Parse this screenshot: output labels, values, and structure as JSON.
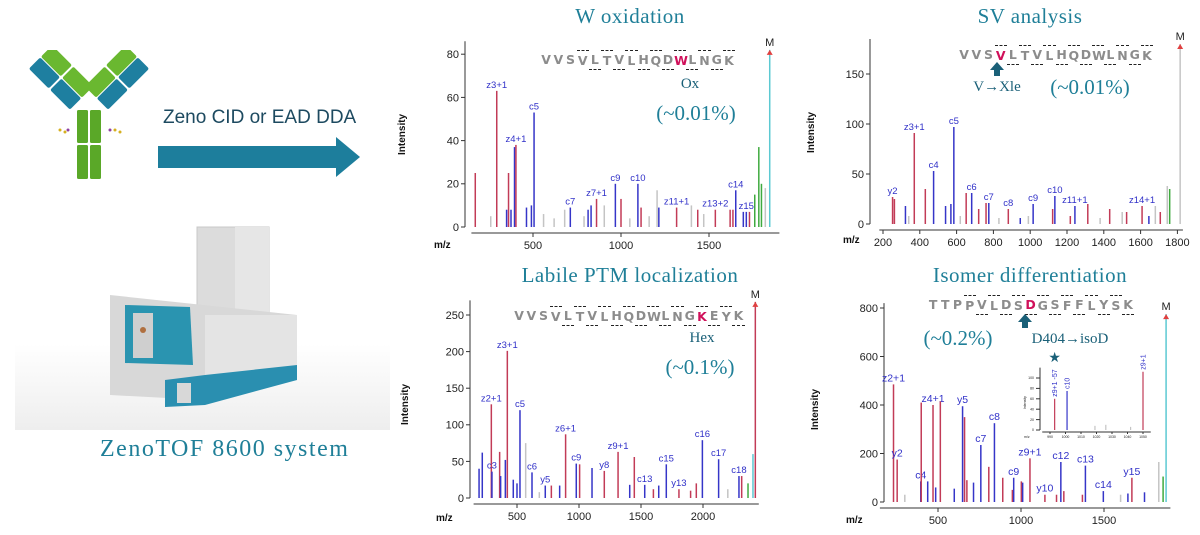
{
  "workflow": {
    "arrow_label": "Zeno CID or EAD DDA",
    "instrument_caption": "ZenoTOF 8600 system",
    "accent_color": "#1a7f9a",
    "icons": [
      "antibody-icon",
      "arrow-right-icon",
      "mass-spectrometer-image"
    ]
  },
  "colors": {
    "red": "#c23b57",
    "blue": "#3535c8",
    "gray": "#c4c4c4",
    "green": "#3faa3f",
    "cyan": "#5cc9d2",
    "label": "#3030c8",
    "mod_residue": "#d0105a"
  },
  "panels": [
    {
      "title": "W oxidation",
      "sequence": "VVSVLTVLHQDWLNGK",
      "mod_index": 11,
      "mod_label": "Ox",
      "abundance": "(~0.01%)",
      "ylabel": "Intensity",
      "xlabel": "m/z"
    },
    {
      "title": "SV analysis",
      "sequence": "VVSVLTVLHQDWLNGK",
      "mod_index": 3,
      "mod_label": "V→Xle",
      "abundance": "(~0.01%)",
      "ylabel": "Intensity",
      "xlabel": "m/z"
    },
    {
      "title": "Labile PTM localization",
      "sequence": "VVSVLTVLHQDWLNGKEYK",
      "mod_index": 15,
      "mod_label": "Hex",
      "abundance": "(~0.1%)",
      "ylabel": "Intensity",
      "xlabel": "m/z"
    },
    {
      "title": "Isomer differentiation",
      "sequence": "TTPPVLDSDGSFFLYSK",
      "mod_index": 8,
      "mod_label": "D404→isoD",
      "abundance": "(~0.2%)",
      "ylabel": "Intensity",
      "xlabel": "m/z"
    }
  ],
  "chart_data": [
    {
      "type": "bar",
      "title": "W oxidation",
      "xlabel": "m/z",
      "ylabel": "Intensity",
      "xlim": [
        150,
        1900
      ],
      "ylim": [
        0,
        86
      ],
      "xticks": [
        500,
        1000,
        1500
      ],
      "yticks": [
        0,
        20,
        40,
        60,
        80
      ],
      "precursor_label": "M",
      "peaks": [
        {
          "mz": 172,
          "i": 25,
          "c": "red"
        },
        {
          "mz": 260,
          "i": 5,
          "c": "gray"
        },
        {
          "mz": 294,
          "i": 63,
          "c": "red",
          "label": "z3+1"
        },
        {
          "mz": 350,
          "i": 8,
          "c": "blue"
        },
        {
          "mz": 361,
          "i": 25,
          "c": "red"
        },
        {
          "mz": 375,
          "i": 8,
          "c": "blue"
        },
        {
          "mz": 395,
          "i": 37,
          "c": "blue"
        },
        {
          "mz": 403,
          "i": 38,
          "c": "red",
          "label": "z4+1"
        },
        {
          "mz": 463,
          "i": 9,
          "c": "blue"
        },
        {
          "mz": 491,
          "i": 10,
          "c": "blue"
        },
        {
          "mz": 506,
          "i": 53,
          "c": "blue",
          "label": "c5"
        },
        {
          "mz": 560,
          "i": 6,
          "c": "gray"
        },
        {
          "mz": 620,
          "i": 4,
          "c": "gray"
        },
        {
          "mz": 680,
          "i": 8,
          "c": "gray"
        },
        {
          "mz": 712,
          "i": 9,
          "c": "blue",
          "label": "c7"
        },
        {
          "mz": 790,
          "i": 5,
          "c": "gray"
        },
        {
          "mz": 813,
          "i": 8,
          "c": "blue"
        },
        {
          "mz": 830,
          "i": 10,
          "c": "blue"
        },
        {
          "mz": 861,
          "i": 13,
          "c": "red",
          "label": "z7+1"
        },
        {
          "mz": 905,
          "i": 10,
          "c": "gray"
        },
        {
          "mz": 968,
          "i": 20,
          "c": "blue",
          "label": "c9"
        },
        {
          "mz": 1000,
          "i": 13,
          "c": "red"
        },
        {
          "mz": 1050,
          "i": 4,
          "c": "gray"
        },
        {
          "mz": 1096,
          "i": 20,
          "c": "blue",
          "label": "c10"
        },
        {
          "mz": 1114,
          "i": 9,
          "c": "red"
        },
        {
          "mz": 1160,
          "i": 5,
          "c": "gray"
        },
        {
          "mz": 1205,
          "i": 17,
          "c": "gray"
        },
        {
          "mz": 1215,
          "i": 9,
          "c": "blue"
        },
        {
          "mz": 1316,
          "i": 9,
          "c": "red",
          "label": "z11+1"
        },
        {
          "mz": 1400,
          "i": 10,
          "c": "gray"
        },
        {
          "mz": 1436,
          "i": 8,
          "c": "red"
        },
        {
          "mz": 1470,
          "i": 6,
          "c": "gray"
        },
        {
          "mz": 1536,
          "i": 8,
          "c": "red",
          "label": "z13+2"
        },
        {
          "mz": 1620,
          "i": 8,
          "c": "red"
        },
        {
          "mz": 1636,
          "i": 8,
          "c": "red"
        },
        {
          "mz": 1652,
          "i": 17,
          "c": "blue",
          "label": "c14"
        },
        {
          "mz": 1695,
          "i": 7,
          "c": "blue"
        },
        {
          "mz": 1712,
          "i": 7,
          "c": "blue",
          "label": "z15"
        },
        {
          "mz": 1730,
          "i": 7,
          "c": "red"
        },
        {
          "mz": 1760,
          "i": 15,
          "c": "green"
        },
        {
          "mz": 1783,
          "i": 37,
          "c": "green"
        },
        {
          "mz": 1798,
          "i": 20,
          "c": "green"
        },
        {
          "mz": 1820,
          "i": 18,
          "c": "gray"
        },
        {
          "mz": 1845,
          "i": 82,
          "c": "cyan",
          "precursor": true
        }
      ]
    },
    {
      "type": "bar",
      "title": "SV analysis",
      "xlabel": "m/z",
      "ylabel": "Intensity",
      "xlim": [
        180,
        1830
      ],
      "ylim": [
        0,
        185
      ],
      "xticks": [
        200,
        400,
        600,
        800,
        1000,
        1200,
        1400,
        1600,
        1800
      ],
      "yticks": [
        0,
        50,
        100,
        150
      ],
      "precursor_label": "M",
      "peaks": [
        {
          "mz": 252,
          "i": 27,
          "c": "red",
          "label": "y2"
        },
        {
          "mz": 262,
          "i": 25,
          "c": "red"
        },
        {
          "mz": 322,
          "i": 18,
          "c": "blue"
        },
        {
          "mz": 340,
          "i": 8,
          "c": "gray"
        },
        {
          "mz": 370,
          "i": 91,
          "c": "red",
          "label": "z3+1"
        },
        {
          "mz": 430,
          "i": 35,
          "c": "red"
        },
        {
          "mz": 475,
          "i": 53,
          "c": "blue",
          "label": "c4"
        },
        {
          "mz": 540,
          "i": 18,
          "c": "blue"
        },
        {
          "mz": 569,
          "i": 20,
          "c": "blue"
        },
        {
          "mz": 585,
          "i": 97,
          "c": "blue",
          "label": "c5"
        },
        {
          "mz": 620,
          "i": 8,
          "c": "gray"
        },
        {
          "mz": 652,
          "i": 31,
          "c": "red"
        },
        {
          "mz": 682,
          "i": 31,
          "c": "blue",
          "label": "c6"
        },
        {
          "mz": 720,
          "i": 15,
          "c": "red"
        },
        {
          "mz": 760,
          "i": 21,
          "c": "red"
        },
        {
          "mz": 775,
          "i": 21,
          "c": "blue",
          "label": "c7"
        },
        {
          "mz": 830,
          "i": 6,
          "c": "gray"
        },
        {
          "mz": 881,
          "i": 15,
          "c": "red",
          "label": "c8"
        },
        {
          "mz": 946,
          "i": 6,
          "c": "blue"
        },
        {
          "mz": 990,
          "i": 8,
          "c": "gray"
        },
        {
          "mz": 1016,
          "i": 20,
          "c": "blue",
          "label": "c9"
        },
        {
          "mz": 1122,
          "i": 15,
          "c": "red"
        },
        {
          "mz": 1134,
          "i": 28,
          "c": "blue",
          "label": "c10"
        },
        {
          "mz": 1218,
          "i": 8,
          "c": "red"
        },
        {
          "mz": 1243,
          "i": 18,
          "c": "blue",
          "label": "z11+1"
        },
        {
          "mz": 1313,
          "i": 20,
          "c": "red"
        },
        {
          "mz": 1380,
          "i": 6,
          "c": "gray"
        },
        {
          "mz": 1432,
          "i": 15,
          "c": "red"
        },
        {
          "mz": 1500,
          "i": 12,
          "c": "gray"
        },
        {
          "mz": 1524,
          "i": 12,
          "c": "red"
        },
        {
          "mz": 1608,
          "i": 18,
          "c": "red",
          "label": "z14+1"
        },
        {
          "mz": 1645,
          "i": 8,
          "c": "blue"
        },
        {
          "mz": 1680,
          "i": 18,
          "c": "gray"
        },
        {
          "mz": 1707,
          "i": 12,
          "c": "red"
        },
        {
          "mz": 1745,
          "i": 38,
          "c": "gray"
        },
        {
          "mz": 1758,
          "i": 35,
          "c": "green"
        },
        {
          "mz": 1815,
          "i": 180,
          "c": "gray",
          "precursor": true
        }
      ]
    },
    {
      "type": "bar",
      "title": "Labile PTM localization",
      "xlabel": "m/z",
      "ylabel": "Intensity",
      "xlim": [
        150,
        2450
      ],
      "ylim": [
        0,
        270
      ],
      "xticks": [
        500,
        1000,
        1500,
        2000
      ],
      "yticks": [
        0,
        50,
        100,
        150,
        200,
        250
      ],
      "precursor_label": "M",
      "peaks": [
        {
          "mz": 194,
          "i": 40,
          "c": "blue"
        },
        {
          "mz": 220,
          "i": 62,
          "c": "blue"
        },
        {
          "mz": 293,
          "i": 128,
          "c": "red",
          "label": "z2+1"
        },
        {
          "mz": 298,
          "i": 36,
          "c": "blue",
          "label": "c3"
        },
        {
          "mz": 360,
          "i": 63,
          "c": "red"
        },
        {
          "mz": 368,
          "i": 30,
          "c": "blue"
        },
        {
          "mz": 406,
          "i": 52,
          "c": "blue"
        },
        {
          "mz": 422,
          "i": 201,
          "c": "red",
          "label": "z3+1"
        },
        {
          "mz": 470,
          "i": 25,
          "c": "blue"
        },
        {
          "mz": 500,
          "i": 20,
          "c": "blue"
        },
        {
          "mz": 524,
          "i": 120,
          "c": "blue",
          "label": "c5"
        },
        {
          "mz": 570,
          "i": 75,
          "c": "gray"
        },
        {
          "mz": 621,
          "i": 35,
          "c": "blue",
          "label": "c6"
        },
        {
          "mz": 680,
          "i": 8,
          "c": "gray"
        },
        {
          "mz": 728,
          "i": 17,
          "c": "blue",
          "label": "y5"
        },
        {
          "mz": 777,
          "i": 17,
          "c": "red"
        },
        {
          "mz": 844,
          "i": 17,
          "c": "blue"
        },
        {
          "mz": 892,
          "i": 87,
          "c": "red",
          "label": "z6+1"
        },
        {
          "mz": 978,
          "i": 47,
          "c": "blue",
          "label": "c9"
        },
        {
          "mz": 1005,
          "i": 46,
          "c": "red"
        },
        {
          "mz": 1105,
          "i": 41,
          "c": "blue"
        },
        {
          "mz": 1204,
          "i": 37,
          "c": "red",
          "label": "y8"
        },
        {
          "mz": 1315,
          "i": 63,
          "c": "red",
          "label": "z9+1"
        },
        {
          "mz": 1409,
          "i": 18,
          "c": "blue"
        },
        {
          "mz": 1446,
          "i": 56,
          "c": "red"
        },
        {
          "mz": 1530,
          "i": 18,
          "c": "blue",
          "label": "c13"
        },
        {
          "mz": 1600,
          "i": 12,
          "c": "red"
        },
        {
          "mz": 1643,
          "i": 17,
          "c": "blue"
        },
        {
          "mz": 1704,
          "i": 46,
          "c": "blue",
          "label": "c15"
        },
        {
          "mz": 1806,
          "i": 12,
          "c": "red",
          "label": "y13"
        },
        {
          "mz": 1900,
          "i": 10,
          "c": "red"
        },
        {
          "mz": 1946,
          "i": 20,
          "c": "red"
        },
        {
          "mz": 1995,
          "i": 79,
          "c": "blue",
          "label": "c16"
        },
        {
          "mz": 2126,
          "i": 53,
          "c": "blue",
          "label": "c17"
        },
        {
          "mz": 2200,
          "i": 12,
          "c": "gray"
        },
        {
          "mz": 2290,
          "i": 30,
          "c": "blue",
          "label": "c18"
        },
        {
          "mz": 2312,
          "i": 30,
          "c": "red"
        },
        {
          "mz": 2363,
          "i": 20,
          "c": "green"
        },
        {
          "mz": 2403,
          "i": 60,
          "c": "cyan"
        },
        {
          "mz": 2422,
          "i": 268,
          "c": "red",
          "precursor": true
        }
      ]
    },
    {
      "type": "bar",
      "title": "Isomer differentiation",
      "xlabel": "m/z",
      "ylabel": "Intensity",
      "xlim": [
        150,
        1900
      ],
      "ylim": [
        0,
        820
      ],
      "xticks": [
        500,
        1000,
        1500
      ],
      "yticks": [
        0,
        200,
        400,
        600,
        800
      ],
      "precursor_label": "M",
      "peaks": [
        {
          "mz": 232,
          "i": 485,
          "c": "red",
          "label": "z2+1"
        },
        {
          "mz": 254,
          "i": 175,
          "c": "red",
          "label": "y2"
        },
        {
          "mz": 300,
          "i": 30,
          "c": "gray"
        },
        {
          "mz": 396,
          "i": 85,
          "c": "blue",
          "label": "c4"
        },
        {
          "mz": 399,
          "i": 410,
          "c": "red"
        },
        {
          "mz": 438,
          "i": 85,
          "c": "blue"
        },
        {
          "mz": 470,
          "i": 400,
          "c": "red",
          "label": "z4+1"
        },
        {
          "mz": 486,
          "i": 60,
          "c": "blue"
        },
        {
          "mz": 514,
          "i": 415,
          "c": "red"
        },
        {
          "mz": 598,
          "i": 55,
          "c": "blue"
        },
        {
          "mz": 648,
          "i": 395,
          "c": "blue",
          "label": "y5"
        },
        {
          "mz": 660,
          "i": 350,
          "c": "red"
        },
        {
          "mz": 674,
          "i": 90,
          "c": "red"
        },
        {
          "mz": 714,
          "i": 80,
          "c": "blue"
        },
        {
          "mz": 758,
          "i": 235,
          "c": "blue",
          "label": "c7"
        },
        {
          "mz": 806,
          "i": 145,
          "c": "red"
        },
        {
          "mz": 840,
          "i": 325,
          "c": "blue",
          "label": "c8"
        },
        {
          "mz": 890,
          "i": 100,
          "c": "red"
        },
        {
          "mz": 948,
          "i": 50,
          "c": "red"
        },
        {
          "mz": 956,
          "i": 100,
          "c": "blue",
          "label": "c9"
        },
        {
          "mz": 1002,
          "i": 85,
          "c": "red"
        },
        {
          "mz": 1010,
          "i": 80,
          "c": "blue"
        },
        {
          "mz": 1054,
          "i": 180,
          "c": "red",
          "label": "z9+1"
        },
        {
          "mz": 1144,
          "i": 30,
          "c": "red",
          "label": "y10"
        },
        {
          "mz": 1214,
          "i": 30,
          "c": "red"
        },
        {
          "mz": 1240,
          "i": 165,
          "c": "blue",
          "label": "c12"
        },
        {
          "mz": 1258,
          "i": 45,
          "c": "red"
        },
        {
          "mz": 1370,
          "i": 30,
          "c": "red"
        },
        {
          "mz": 1388,
          "i": 150,
          "c": "blue",
          "label": "c13"
        },
        {
          "mz": 1496,
          "i": 45,
          "c": "blue",
          "label": "c14"
        },
        {
          "mz": 1600,
          "i": 30,
          "c": "gray"
        },
        {
          "mz": 1644,
          "i": 35,
          "c": "blue"
        },
        {
          "mz": 1668,
          "i": 100,
          "c": "red",
          "label": "y15"
        },
        {
          "mz": 1744,
          "i": 40,
          "c": "blue"
        },
        {
          "mz": 1830,
          "i": 165,
          "c": "gray"
        },
        {
          "mz": 1856,
          "i": 105,
          "c": "green"
        },
        {
          "mz": 1874,
          "i": 775,
          "c": "cyan",
          "precursor": true
        }
      ],
      "inset": {
        "type": "bar",
        "xlabel": "m/z",
        "ylabel": "Intensity",
        "xlim": [
          985,
          1055
        ],
        "ylim": [
          0,
          120
        ],
        "xticks": [
          990,
          1000,
          1010,
          1020,
          1030,
          1040,
          1050
        ],
        "yticks": [
          0,
          20,
          40,
          60,
          80,
          100
        ],
        "marker": "star-icon",
        "peaks": [
          {
            "mz": 993,
            "i": 60,
            "c": "red",
            "label": "z9+1 -57",
            "starred": true
          },
          {
            "mz": 1001,
            "i": 75,
            "c": "blue",
            "label": "c10"
          },
          {
            "mz": 1019,
            "i": 8,
            "c": "gray"
          },
          {
            "mz": 1026,
            "i": 10,
            "c": "gray"
          },
          {
            "mz": 1042,
            "i": 6,
            "c": "gray"
          },
          {
            "mz": 1050,
            "i": 112,
            "c": "red",
            "label": "z9+1"
          }
        ]
      }
    }
  ]
}
